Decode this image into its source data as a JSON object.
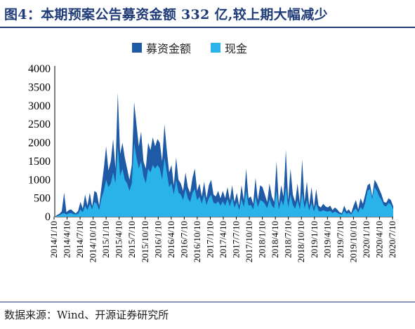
{
  "title": "图4：本期预案公告募资金额 332 亿,较上期大幅减少",
  "source": "数据来源：Wind、开源证券研究所",
  "chart_data": {
    "type": "area",
    "ylim": [
      0,
      4000
    ],
    "yticks": [
      "4000",
      "3500",
      "3000",
      "2500",
      "2000",
      "1500",
      "1000",
      "500",
      "0"
    ],
    "ytick_values": [
      4000,
      3500,
      3000,
      2500,
      2000,
      1500,
      1000,
      500,
      0
    ],
    "xtick_labels": [
      "2014/1/10",
      "2014/4/10",
      "2014/7/10",
      "2014/10/10",
      "2015/1/10",
      "2015/4/10",
      "2015/7/10",
      "2015/10/10",
      "2016/1/10",
      "2016/4/10",
      "2016/7/10",
      "2016/10/10",
      "2017/1/10",
      "2017/4/10",
      "2017/7/10",
      "2017/10/10",
      "2018/1/10",
      "2018/4/10",
      "2018/7/10",
      "2018/10/10",
      "2019/1/10",
      "2019/4/10",
      "2019/7/10",
      "2019/10/10",
      "2020/1/10",
      "2020/4/10",
      "2020/7/10"
    ],
    "legend": [
      "募资金额",
      "现金"
    ],
    "colors": {
      "募资金额": "#1f5aa6",
      "现金": "#2ab3ea"
    },
    "series": [
      {
        "name": "募资金额",
        "values": [
          0,
          50,
          80,
          150,
          650,
          120,
          180,
          200,
          140,
          90,
          160,
          400,
          220,
          600,
          300,
          650,
          280,
          700,
          650,
          300,
          800,
          1300,
          1900,
          1250,
          1500,
          2100,
          1300,
          3350,
          1700,
          2000,
          1600,
          1300,
          1000,
          1400,
          3100,
          2500,
          1900,
          2300,
          1500,
          1300,
          2000,
          1800,
          2150,
          1900,
          2100,
          2000,
          1500,
          2500,
          1800,
          1200,
          1400,
          850,
          1600,
          1000,
          900,
          700,
          1200,
          800,
          650,
          1050,
          1300,
          700,
          900,
          550,
          950,
          500,
          850,
          1000,
          600,
          550,
          700,
          500,
          700,
          500,
          800,
          450,
          850,
          400,
          650,
          300,
          850,
          450,
          1300,
          500,
          550,
          350,
          1050,
          450,
          850,
          800,
          600,
          400,
          900,
          550,
          400,
          1500,
          350,
          850,
          550,
          1800,
          450,
          1300,
          600,
          400,
          900,
          350,
          1550,
          400,
          950,
          300,
          800,
          250,
          750,
          300,
          250,
          350,
          280,
          250,
          300,
          180,
          250,
          200,
          120,
          100,
          300,
          150,
          200,
          100,
          300,
          450,
          200,
          500,
          350,
          600,
          850,
          900,
          550,
          1000,
          900,
          750,
          600,
          400,
          380,
          500,
          450,
          280
        ],
        "note": "values estimated from chart, sampled approximately every 11 days"
      },
      {
        "name": "现金",
        "values": [
          0,
          20,
          40,
          80,
          100,
          60,
          90,
          100,
          70,
          60,
          80,
          200,
          120,
          300,
          180,
          350,
          200,
          400,
          350,
          180,
          500,
          700,
          1000,
          800,
          900,
          1200,
          900,
          1900,
          1100,
          1300,
          1000,
          900,
          700,
          900,
          2000,
          1600,
          1300,
          1500,
          1100,
          900,
          1300,
          1200,
          1400,
          1300,
          1400,
          1300,
          1000,
          1600,
          1200,
          800,
          900,
          600,
          1000,
          650,
          600,
          450,
          750,
          500,
          400,
          650,
          750,
          450,
          550,
          350,
          600,
          320,
          500,
          600,
          380,
          350,
          420,
          300,
          420,
          300,
          480,
          280,
          500,
          250,
          400,
          180,
          480,
          260,
          700,
          300,
          320,
          200,
          550,
          260,
          450,
          420,
          350,
          230,
          480,
          300,
          230,
          700,
          200,
          450,
          300,
          800,
          250,
          600,
          320,
          220,
          450,
          200,
          650,
          220,
          450,
          170,
          380,
          140,
          350,
          160,
          140,
          180,
          150,
          140,
          160,
          100,
          140,
          110,
          70,
          60,
          160,
          80,
          110,
          60,
          160,
          230,
          110,
          260,
          190,
          380,
          700,
          750,
          480,
          800,
          700,
          550,
          450,
          300,
          280,
          380,
          330,
          200
        ]
      }
    ]
  }
}
